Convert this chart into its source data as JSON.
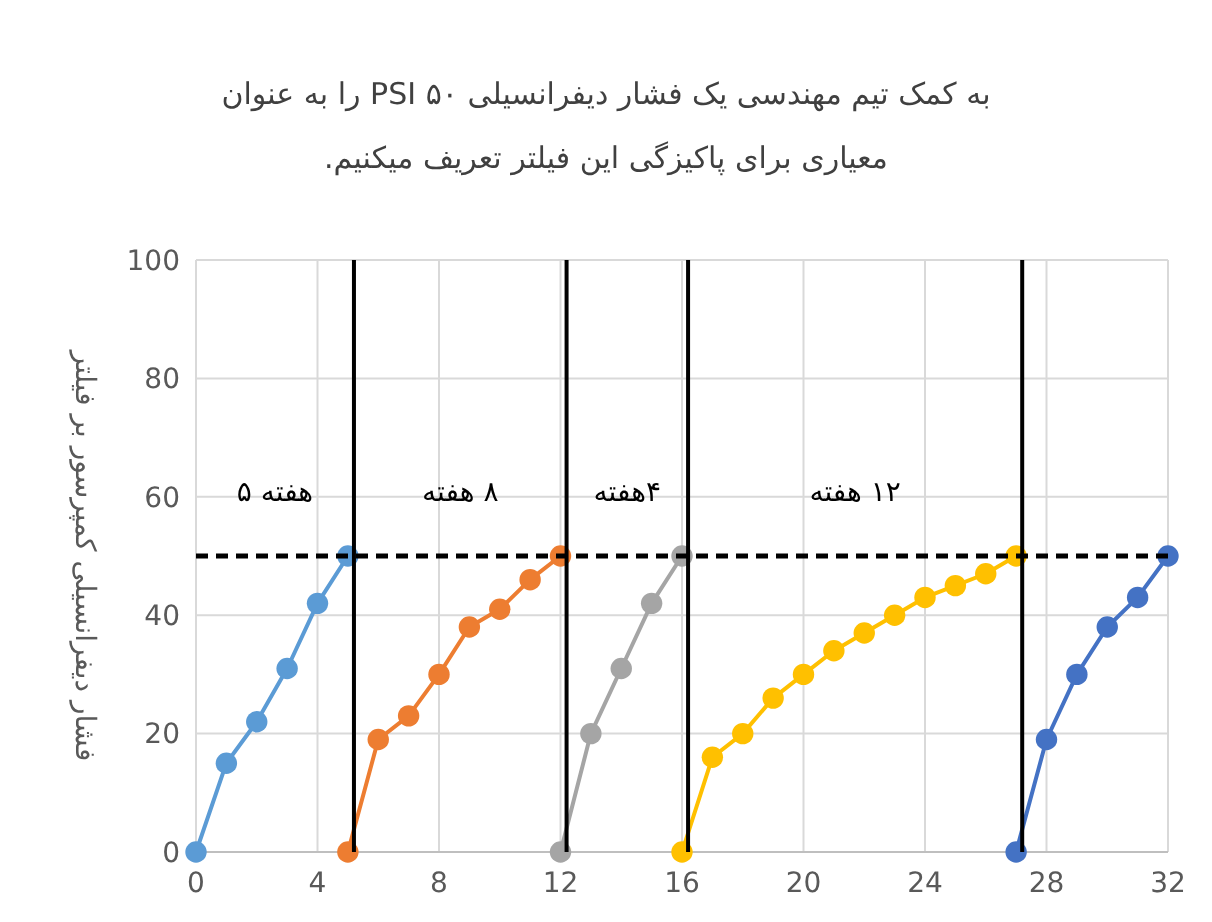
{
  "chart_data": {
    "type": "line",
    "title": "به کمک تیم مهندسی یک فشار دیفرانسیلی ۵۰ PSI را به عنوان معیاری برای پاکیزگی این فیلتر تعریف میکنیم.",
    "ylabel": "فشار دیفرانسیلی کمپرسور بر فیلتر",
    "xlim": [
      0,
      32
    ],
    "xticks": [
      0,
      4,
      8,
      12,
      16,
      20,
      24,
      28,
      32
    ],
    "ylim": [
      0,
      100
    ],
    "yticks": [
      0,
      20,
      40,
      60,
      80,
      100
    ],
    "grid": true,
    "marker": "circle",
    "series": [
      {
        "color": "#5b9bd5",
        "x": [
          0,
          1,
          2,
          3,
          4,
          5
        ],
        "values": [
          0,
          15,
          22,
          31,
          42,
          50
        ]
      },
      {
        "color": "#ed7d31",
        "x": [
          5,
          6,
          7,
          8,
          9,
          10,
          11,
          12
        ],
        "values": [
          0,
          19,
          23,
          30,
          38,
          41,
          46,
          50
        ]
      },
      {
        "color": "#a5a5a5",
        "x": [
          12,
          13,
          14,
          15,
          16
        ],
        "values": [
          0,
          20,
          31,
          42,
          50
        ]
      },
      {
        "color": "#ffc000",
        "x": [
          16,
          17,
          18,
          19,
          20,
          21,
          22,
          23,
          24,
          25,
          26,
          27
        ],
        "values": [
          0,
          16,
          20,
          26,
          30,
          34,
          37,
          40,
          43,
          45,
          47,
          50
        ]
      },
      {
        "color": "#4472c4",
        "x": [
          27,
          28,
          29,
          30,
          31,
          32
        ],
        "values": [
          0,
          19,
          30,
          38,
          43,
          50
        ]
      }
    ],
    "ref_lines": [
      {
        "axis": "y",
        "value": 50,
        "color": "#000000",
        "line_style": "dashed"
      },
      {
        "axis": "x",
        "value": 5.2,
        "color": "#000000",
        "line_style": "solid"
      },
      {
        "axis": "x",
        "value": 12.2,
        "color": "#000000",
        "line_style": "solid"
      },
      {
        "axis": "x",
        "value": 16.2,
        "color": "#000000",
        "line_style": "solid"
      },
      {
        "axis": "x",
        "value": 27.2,
        "color": "#000000",
        "line_style": "solid"
      }
    ],
    "annotations": [
      "هفته ۵",
      "۸ هفته",
      "۴هفته",
      "۱۲ هفته"
    ]
  }
}
